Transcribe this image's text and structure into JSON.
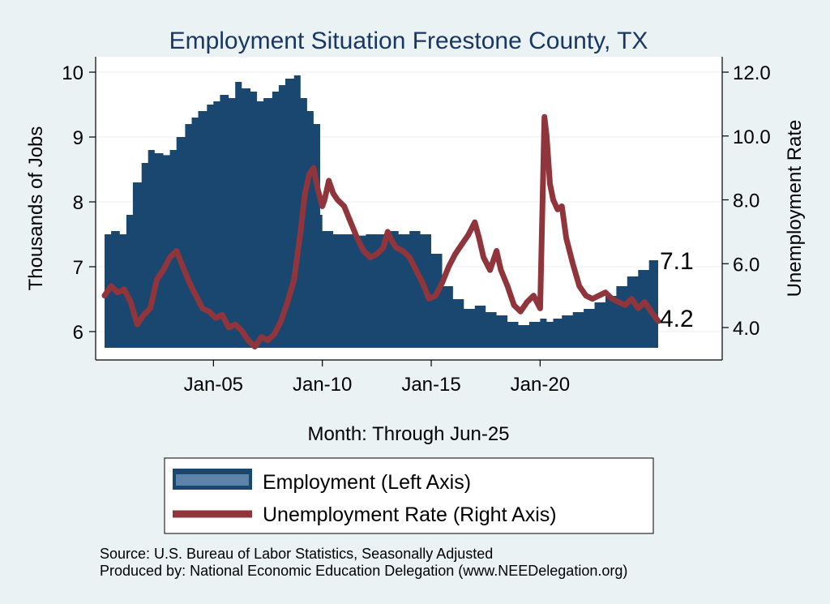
{
  "chart_data": {
    "type": "area+line",
    "title": "Employment Situation Freestone  County, TX",
    "xlabel": "Month: Through Jun-25",
    "ylabel_left": "Thousands of Jobs",
    "ylabel_right": "Unemployment Rate",
    "x_range": [
      2000.0,
      2025.42
    ],
    "ylim_left": [
      5.7,
      10.1
    ],
    "ylim_right": [
      3.3,
      12.1
    ],
    "x_ticks": [
      {
        "value": 2005,
        "label": "Jan-05"
      },
      {
        "value": 2010,
        "label": "Jan-10"
      },
      {
        "value": 2015,
        "label": "Jan-15"
      },
      {
        "value": 2020,
        "label": "Jan-20"
      }
    ],
    "y_ticks_left": [
      {
        "value": 6,
        "label": "6"
      },
      {
        "value": 7,
        "label": "7"
      },
      {
        "value": 8,
        "label": "8"
      },
      {
        "value": 9,
        "label": "9"
      },
      {
        "value": 10,
        "label": "10"
      }
    ],
    "y_ticks_right": [
      {
        "value": 4,
        "label": "4.0"
      },
      {
        "value": 6,
        "label": "6.0"
      },
      {
        "value": 8,
        "label": "8.0"
      },
      {
        "value": 10,
        "label": "10.0"
      },
      {
        "value": 12,
        "label": "12.0"
      }
    ],
    "series": [
      {
        "name": "Employment (Left Axis)",
        "axis": "left",
        "style": "area",
        "color": "#1a476f",
        "x": [
          2000.0,
          2000.3,
          2000.7,
          2001.0,
          2001.3,
          2001.7,
          2002.0,
          2002.3,
          2002.7,
          2003.0,
          2003.3,
          2003.7,
          2004.0,
          2004.3,
          2004.7,
          2005.0,
          2005.3,
          2005.7,
          2006.0,
          2006.3,
          2006.7,
          2007.0,
          2007.3,
          2007.7,
          2008.0,
          2008.3,
          2008.7,
          2009.0,
          2009.3,
          2009.6,
          2009.9,
          2010.0,
          2010.5,
          2011.0,
          2011.5,
          2012.0,
          2012.5,
          2013.0,
          2013.5,
          2014.0,
          2014.5,
          2015.0,
          2015.5,
          2016.0,
          2016.5,
          2017.0,
          2017.5,
          2018.0,
          2018.5,
          2019.0,
          2019.5,
          2020.0,
          2020.3,
          2020.6,
          2021.0,
          2021.5,
          2022.0,
          2022.5,
          2023.0,
          2023.5,
          2024.0,
          2024.5,
          2025.0,
          2025.42
        ],
        "values": [
          7.5,
          7.55,
          7.5,
          7.8,
          8.3,
          8.6,
          8.8,
          8.75,
          8.72,
          8.8,
          9.0,
          9.2,
          9.3,
          9.4,
          9.5,
          9.55,
          9.65,
          9.6,
          9.85,
          9.75,
          9.7,
          9.55,
          9.6,
          9.7,
          9.8,
          9.9,
          9.95,
          9.6,
          9.4,
          9.2,
          7.8,
          7.55,
          7.5,
          7.5,
          7.48,
          7.5,
          7.5,
          7.55,
          7.5,
          7.55,
          7.5,
          7.2,
          6.7,
          6.5,
          6.35,
          6.4,
          6.3,
          6.25,
          6.15,
          6.1,
          6.15,
          6.2,
          6.15,
          6.2,
          6.25,
          6.3,
          6.35,
          6.45,
          6.55,
          6.7,
          6.85,
          6.95,
          7.1,
          7.1
        ]
      },
      {
        "name": "Unemployment Rate (Right Axis)",
        "axis": "right",
        "style": "line",
        "color": "#90353b",
        "x": [
          2000.0,
          2000.3,
          2000.6,
          2000.9,
          2001.2,
          2001.5,
          2001.8,
          2002.1,
          2002.4,
          2002.7,
          2003.0,
          2003.3,
          2003.6,
          2003.9,
          2004.2,
          2004.5,
          2004.8,
          2005.1,
          2005.4,
          2005.7,
          2006.0,
          2006.3,
          2006.6,
          2006.9,
          2007.2,
          2007.5,
          2007.8,
          2008.1,
          2008.4,
          2008.7,
          2009.0,
          2009.2,
          2009.4,
          2009.6,
          2009.8,
          2010.0,
          2010.1,
          2010.3,
          2010.5,
          2010.7,
          2011.0,
          2011.3,
          2011.6,
          2011.9,
          2012.2,
          2012.5,
          2012.8,
          2013.0,
          2013.2,
          2013.4,
          2013.7,
          2014.0,
          2014.3,
          2014.6,
          2014.9,
          2015.2,
          2015.5,
          2015.8,
          2016.1,
          2016.4,
          2016.7,
          2017.0,
          2017.2,
          2017.4,
          2017.7,
          2018.0,
          2018.2,
          2018.5,
          2018.8,
          2019.1,
          2019.4,
          2019.7,
          2020.0,
          2020.2,
          2020.3,
          2020.45,
          2020.6,
          2020.8,
          2021.0,
          2021.2,
          2021.5,
          2021.8,
          2022.1,
          2022.4,
          2022.7,
          2023.0,
          2023.3,
          2023.6,
          2023.9,
          2024.2,
          2024.5,
          2024.8,
          2025.1,
          2025.42
        ],
        "values": [
          5.0,
          5.3,
          5.1,
          5.2,
          4.8,
          4.1,
          4.4,
          4.6,
          5.5,
          5.8,
          6.2,
          6.4,
          5.9,
          5.4,
          5.0,
          4.6,
          4.5,
          4.3,
          4.4,
          4.0,
          4.1,
          3.9,
          3.6,
          3.4,
          3.7,
          3.6,
          3.8,
          4.2,
          4.8,
          5.5,
          7.0,
          8.2,
          8.8,
          9.0,
          8.3,
          7.8,
          8.0,
          8.6,
          8.2,
          8.0,
          7.8,
          7.3,
          6.8,
          6.4,
          6.2,
          6.3,
          6.5,
          7.0,
          6.7,
          6.5,
          6.4,
          6.2,
          5.8,
          5.4,
          4.9,
          5.0,
          5.4,
          5.9,
          6.3,
          6.6,
          6.9,
          7.3,
          6.8,
          6.2,
          5.8,
          6.4,
          5.8,
          5.3,
          4.7,
          4.5,
          4.8,
          5.0,
          4.6,
          10.6,
          10.0,
          8.5,
          8.0,
          7.7,
          7.8,
          6.8,
          6.0,
          5.3,
          5.0,
          4.9,
          5.0,
          5.1,
          4.9,
          4.8,
          4.7,
          4.9,
          4.6,
          4.8,
          4.5,
          4.2
        ]
      }
    ],
    "end_labels": [
      {
        "series": "Employment (Left Axis)",
        "text": "7.1"
      },
      {
        "series": "Unemployment Rate (Right Axis)",
        "text": "4.2"
      }
    ],
    "legend": {
      "placement": "bottom",
      "items": [
        {
          "label": "Employment (Left Axis)",
          "color": "#1a476f",
          "swatch_inner": "#5e84aa"
        },
        {
          "label": "Unemployment Rate (Right Axis)",
          "color": "#90353b"
        }
      ]
    },
    "notes": [
      "Source: U.S. Bureau of Labor Statistics, Seasonally Adjusted",
      "Produced by: National Economic Education Delegation (www.NEEDelegation.org)"
    ]
  },
  "colors": {
    "page_background": "#eaf2f3",
    "plot_background": "#ffffff",
    "title_color": "#1a3763",
    "grid_color": "#e9eef0"
  }
}
